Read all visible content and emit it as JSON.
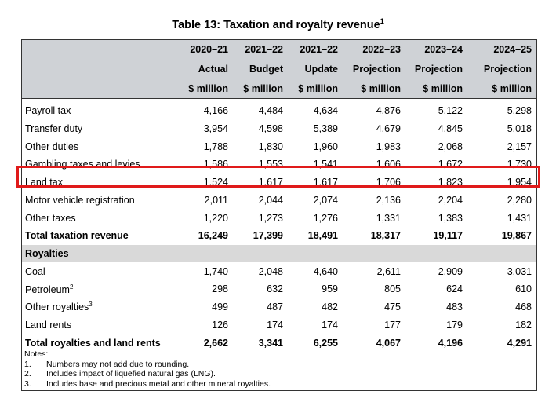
{
  "title": "Table 13: Taxation and royalty revenue",
  "title_note": "1",
  "header": {
    "years": [
      "2020–21",
      "2021–22",
      "2021–22",
      "2022–23",
      "2023–24",
      "2024–25"
    ],
    "types": [
      "Actual",
      "Budget",
      "Update",
      "Projection",
      "Projection",
      "Projection"
    ],
    "units": [
      "$ million",
      "$ million",
      "$ million",
      "$ million",
      "$ million",
      "$ million"
    ]
  },
  "taxation_rows": [
    {
      "label": "Payroll tax",
      "values": [
        "4,166",
        "4,484",
        "4,634",
        "4,876",
        "5,122",
        "5,298"
      ]
    },
    {
      "label": "Transfer duty",
      "values": [
        "3,954",
        "4,598",
        "5,389",
        "4,679",
        "4,845",
        "5,018"
      ]
    },
    {
      "label": "Other duties",
      "values": [
        "1,788",
        "1,830",
        "1,960",
        "1,983",
        "2,068",
        "2,157"
      ]
    },
    {
      "label": "Gambling taxes and levies",
      "values": [
        "1,586",
        "1,553",
        "1,541",
        "1,606",
        "1,672",
        "1,730"
      ]
    },
    {
      "label": "Land tax",
      "values": [
        "1,524",
        "1,617",
        "1,617",
        "1,706",
        "1,823",
        "1,954"
      ]
    },
    {
      "label": "Motor vehicle registration",
      "values": [
        "2,011",
        "2,044",
        "2,074",
        "2,136",
        "2,204",
        "2,280"
      ]
    },
    {
      "label": "Other taxes",
      "values": [
        "1,220",
        "1,273",
        "1,276",
        "1,331",
        "1,383",
        "1,431"
      ]
    }
  ],
  "taxation_total": {
    "label": "Total taxation revenue",
    "values": [
      "16,249",
      "17,399",
      "18,491",
      "18,317",
      "19,117",
      "19,867"
    ]
  },
  "royalties_heading": "Royalties",
  "royalty_rows": [
    {
      "label": "Coal",
      "note": "",
      "values": [
        "1,740",
        "2,048",
        "4,640",
        "2,611",
        "2,909",
        "3,031"
      ]
    },
    {
      "label": "Petroleum",
      "note": "2",
      "values": [
        "298",
        "632",
        "959",
        "805",
        "624",
        "610"
      ]
    },
    {
      "label": "Other royalties",
      "note": "3",
      "values": [
        "499",
        "487",
        "482",
        "475",
        "483",
        "468"
      ]
    },
    {
      "label": "Land rents",
      "note": "",
      "values": [
        "126",
        "174",
        "174",
        "177",
        "179",
        "182"
      ]
    }
  ],
  "royalties_total": {
    "label": "Total royalties and land rents",
    "values": [
      "2,662",
      "3,341",
      "6,255",
      "4,067",
      "4,196",
      "4,291"
    ]
  },
  "notes": {
    "heading": "Notes:",
    "items": [
      {
        "num": "1.",
        "text": "Numbers may not add due to rounding."
      },
      {
        "num": "2.",
        "text": "Includes impact of liquefied natural gas (LNG)."
      },
      {
        "num": "3.",
        "text": "Includes base and precious metal and other mineral royalties."
      }
    ]
  },
  "highlight_color": "#e01a1a"
}
